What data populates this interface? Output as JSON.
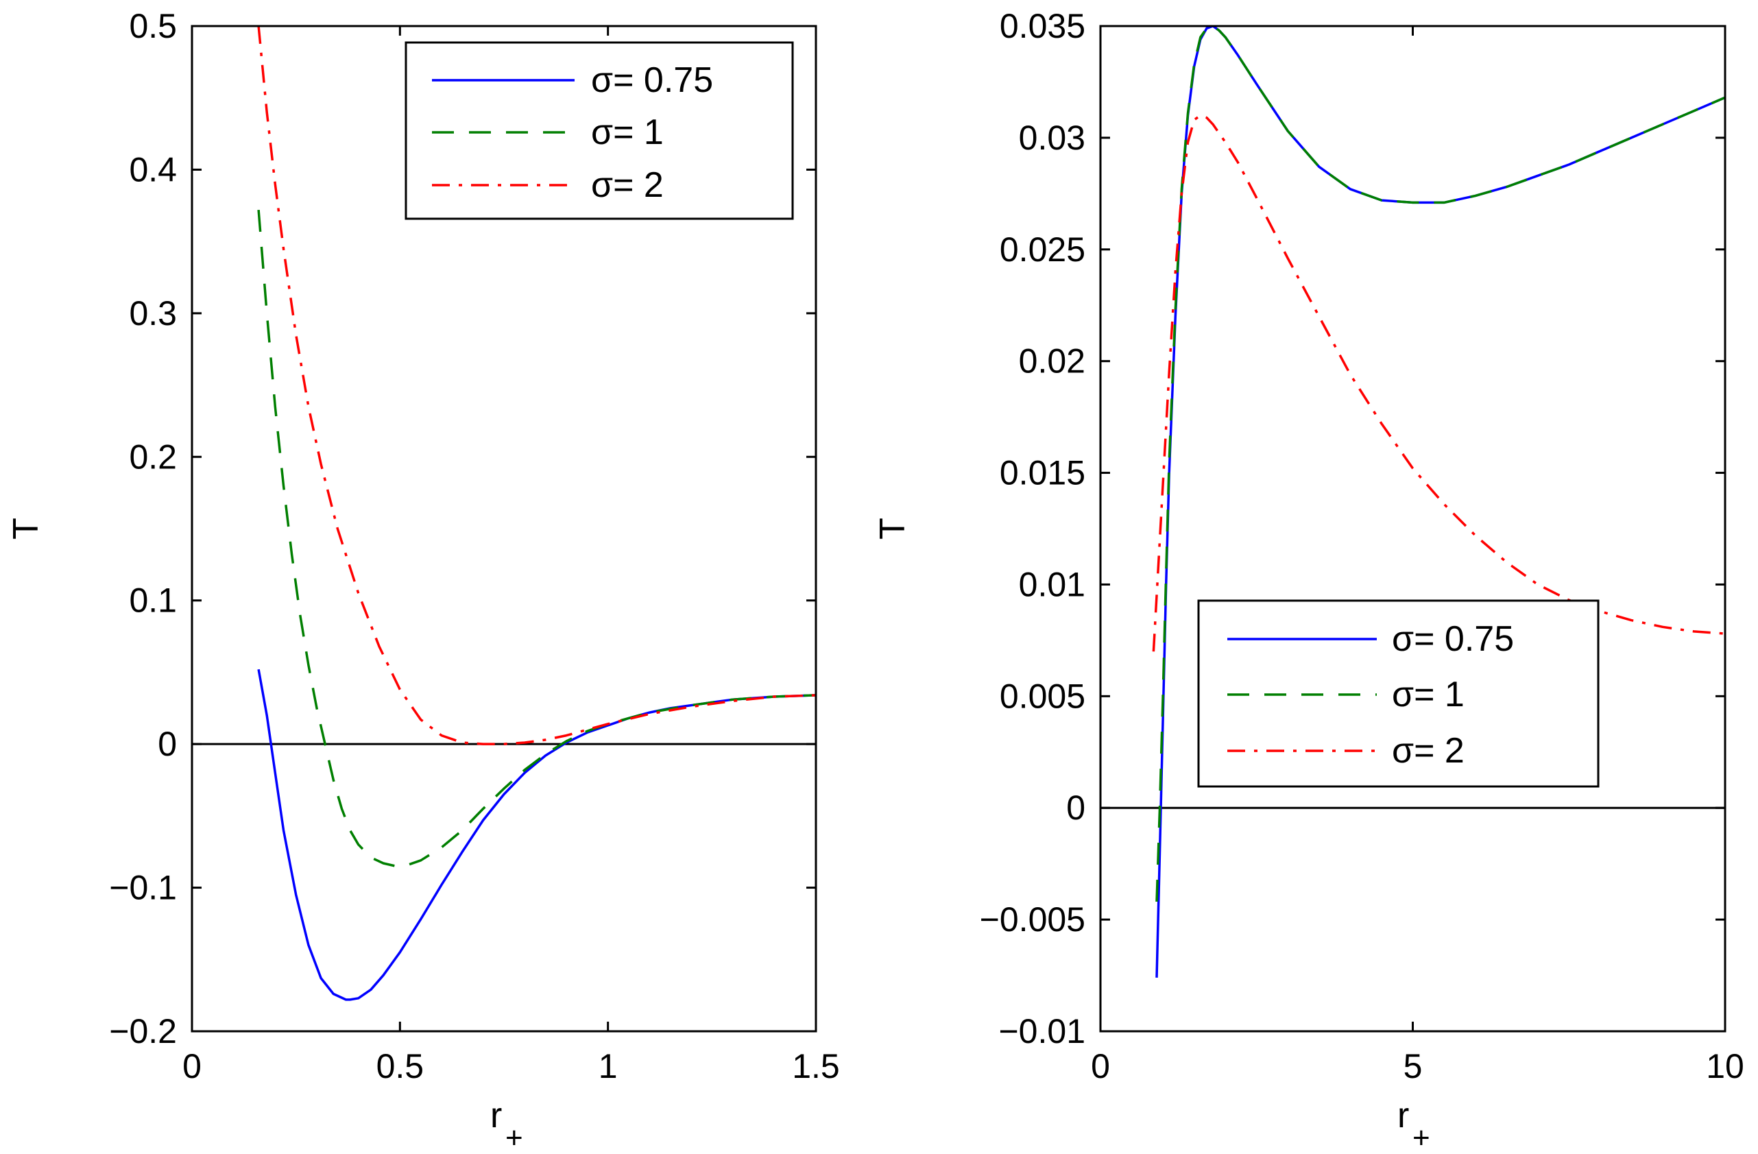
{
  "chart_data": [
    {
      "type": "line",
      "title": "",
      "xlabel": "r",
      "xlabel_subscript": "+",
      "ylabel": "T",
      "xlim": [
        0,
        1.5
      ],
      "ylim": [
        -0.2,
        0.5
      ],
      "xticks": [
        0,
        0.5,
        1,
        1.5
      ],
      "xtick_labels": [
        "0",
        "0.5",
        "1",
        "1.5"
      ],
      "yticks": [
        -0.2,
        -0.1,
        0,
        0.1,
        0.2,
        0.3,
        0.4,
        0.5
      ],
      "ytick_labels": [
        "−0.2",
        "−0.1",
        "0",
        "0.1",
        "0.2",
        "0.3",
        "0.4",
        "0.5"
      ],
      "grid": false,
      "legend_position": "top-right",
      "reference_line": {
        "y": 0
      },
      "series": [
        {
          "name": "σ= 0.75",
          "color": "#0000ff",
          "style": "solid",
          "x": [
            0.16,
            0.18,
            0.2,
            0.22,
            0.25,
            0.28,
            0.31,
            0.34,
            0.37,
            0.38,
            0.4,
            0.43,
            0.46,
            0.5,
            0.55,
            0.6,
            0.65,
            0.7,
            0.75,
            0.8,
            0.85,
            0.9,
            0.95,
            1.0,
            1.05,
            1.1,
            1.15,
            1.2,
            1.25,
            1.3,
            1.35,
            1.4,
            1.45,
            1.5
          ],
          "y": [
            0.052,
            0.02,
            -0.02,
            -0.06,
            -0.105,
            -0.14,
            -0.163,
            -0.174,
            -0.178,
            -0.178,
            -0.177,
            -0.171,
            -0.161,
            -0.145,
            -0.122,
            -0.098,
            -0.075,
            -0.053,
            -0.035,
            -0.02,
            -0.008,
            0.001,
            0.008,
            0.013,
            0.018,
            0.022,
            0.025,
            0.027,
            0.029,
            0.031,
            0.032,
            0.033,
            0.0335,
            0.034
          ]
        },
        {
          "name": "σ= 1",
          "color": "#007f00",
          "style": "dashed",
          "x": [
            0.16,
            0.18,
            0.2,
            0.22,
            0.24,
            0.26,
            0.28,
            0.3,
            0.32,
            0.34,
            0.36,
            0.38,
            0.4,
            0.43,
            0.46,
            0.49,
            0.52,
            0.55,
            0.6,
            0.65,
            0.7,
            0.75,
            0.8,
            0.85,
            0.9,
            0.95,
            1.0,
            1.1,
            1.2,
            1.3,
            1.4,
            1.5
          ],
          "y": [
            0.372,
            0.3,
            0.235,
            0.18,
            0.132,
            0.09,
            0.055,
            0.025,
            0.0,
            -0.025,
            -0.045,
            -0.06,
            -0.07,
            -0.079,
            -0.083,
            -0.085,
            -0.084,
            -0.081,
            -0.072,
            -0.06,
            -0.045,
            -0.031,
            -0.018,
            -0.007,
            0.002,
            0.009,
            0.014,
            0.022,
            0.027,
            0.031,
            0.033,
            0.034
          ]
        },
        {
          "name": "σ= 2",
          "color": "#ff0000",
          "style": "dashdot",
          "x": [
            0.16,
            0.18,
            0.2,
            0.22,
            0.25,
            0.28,
            0.31,
            0.35,
            0.4,
            0.45,
            0.5,
            0.55,
            0.6,
            0.65,
            0.7,
            0.75,
            0.8,
            0.85,
            0.9,
            0.95,
            1.0,
            1.1,
            1.2,
            1.3,
            1.4,
            1.5
          ],
          "y": [
            0.5,
            0.44,
            0.39,
            0.345,
            0.285,
            0.235,
            0.195,
            0.15,
            0.105,
            0.068,
            0.038,
            0.017,
            0.006,
            0.001,
            0.0,
            0.0,
            0.001,
            0.003,
            0.006,
            0.01,
            0.014,
            0.021,
            0.026,
            0.03,
            0.033,
            0.034
          ]
        }
      ]
    },
    {
      "type": "line",
      "title": "",
      "xlabel": "r",
      "xlabel_subscript": "+",
      "ylabel": "T",
      "xlim": [
        0,
        10
      ],
      "ylim": [
        -0.01,
        0.035
      ],
      "xticks": [
        0,
        5,
        10
      ],
      "xtick_labels": [
        "0",
        "5",
        "10"
      ],
      "yticks": [
        -0.01,
        -0.005,
        0,
        0.005,
        0.01,
        0.015,
        0.02,
        0.025,
        0.03,
        0.035
      ],
      "ytick_labels": [
        "−0.01",
        "−0.005",
        "0",
        "0.005",
        "0.01",
        "0.015",
        "0.02",
        "0.025",
        "0.03",
        "0.035"
      ],
      "grid": false,
      "legend_position": "center-left",
      "reference_line": {
        "y": 0
      },
      "series": [
        {
          "name": "σ= 0.75",
          "color": "#0000ff",
          "style": "solid",
          "x": [
            0.9,
            0.95,
            1.0,
            1.05,
            1.1,
            1.2,
            1.3,
            1.4,
            1.5,
            1.6,
            1.7,
            1.8,
            1.9,
            2.0,
            2.2,
            2.5,
            3.0,
            3.5,
            4.0,
            4.5,
            5.0,
            5.5,
            6.0,
            6.5,
            7.0,
            7.5,
            8.0,
            8.5,
            9.0,
            9.5,
            10.0
          ],
          "y": [
            -0.0076,
            -0.002,
            0.004,
            0.01,
            0.015,
            0.022,
            0.0275,
            0.031,
            0.0332,
            0.0344,
            0.0349,
            0.035,
            0.0348,
            0.0345,
            0.0337,
            0.0324,
            0.0303,
            0.0287,
            0.0277,
            0.0272,
            0.0271,
            0.0271,
            0.0274,
            0.0278,
            0.0283,
            0.0288,
            0.0294,
            0.03,
            0.0306,
            0.0312,
            0.0318
          ]
        },
        {
          "name": "σ= 1",
          "color": "#007f00",
          "style": "dashed",
          "x": [
            0.9,
            0.95,
            1.0,
            1.05,
            1.1,
            1.2,
            1.3,
            1.4,
            1.5,
            1.6,
            1.7,
            1.8,
            1.9,
            2.0,
            2.2,
            2.5,
            3.0,
            3.5,
            4.0,
            4.5,
            5.0,
            5.5,
            6.0,
            6.5,
            7.0,
            7.5,
            8.0,
            8.5,
            9.0,
            9.5,
            10.0
          ],
          "y": [
            -0.0042,
            0.0,
            0.005,
            0.0105,
            0.0155,
            0.0223,
            0.0277,
            0.0311,
            0.0333,
            0.0345,
            0.0349,
            0.035,
            0.0348,
            0.0345,
            0.0337,
            0.0324,
            0.0303,
            0.0287,
            0.0277,
            0.0272,
            0.0271,
            0.0271,
            0.0274,
            0.0278,
            0.0283,
            0.0288,
            0.0294,
            0.03,
            0.0306,
            0.0312,
            0.0318
          ]
        },
        {
          "name": "σ= 2",
          "color": "#ff0000",
          "style": "dashdot",
          "x": [
            0.85,
            0.9,
            1.0,
            1.1,
            1.2,
            1.3,
            1.4,
            1.5,
            1.6,
            1.7,
            1.8,
            2.0,
            2.2,
            2.5,
            3.0,
            3.5,
            4.0,
            4.5,
            5.0,
            5.5,
            6.0,
            6.5,
            7.0,
            7.5,
            8.0,
            8.5,
            9.0,
            9.5,
            10.0
          ],
          "y": [
            0.007,
            0.0095,
            0.0145,
            0.0195,
            0.024,
            0.0275,
            0.0298,
            0.0308,
            0.031,
            0.0309,
            0.0306,
            0.0298,
            0.0289,
            0.0273,
            0.0246,
            0.022,
            0.0194,
            0.0172,
            0.0152,
            0.0136,
            0.0122,
            0.011,
            0.01,
            0.0093,
            0.0088,
            0.0084,
            0.0081,
            0.0079,
            0.0078
          ]
        }
      ]
    }
  ]
}
